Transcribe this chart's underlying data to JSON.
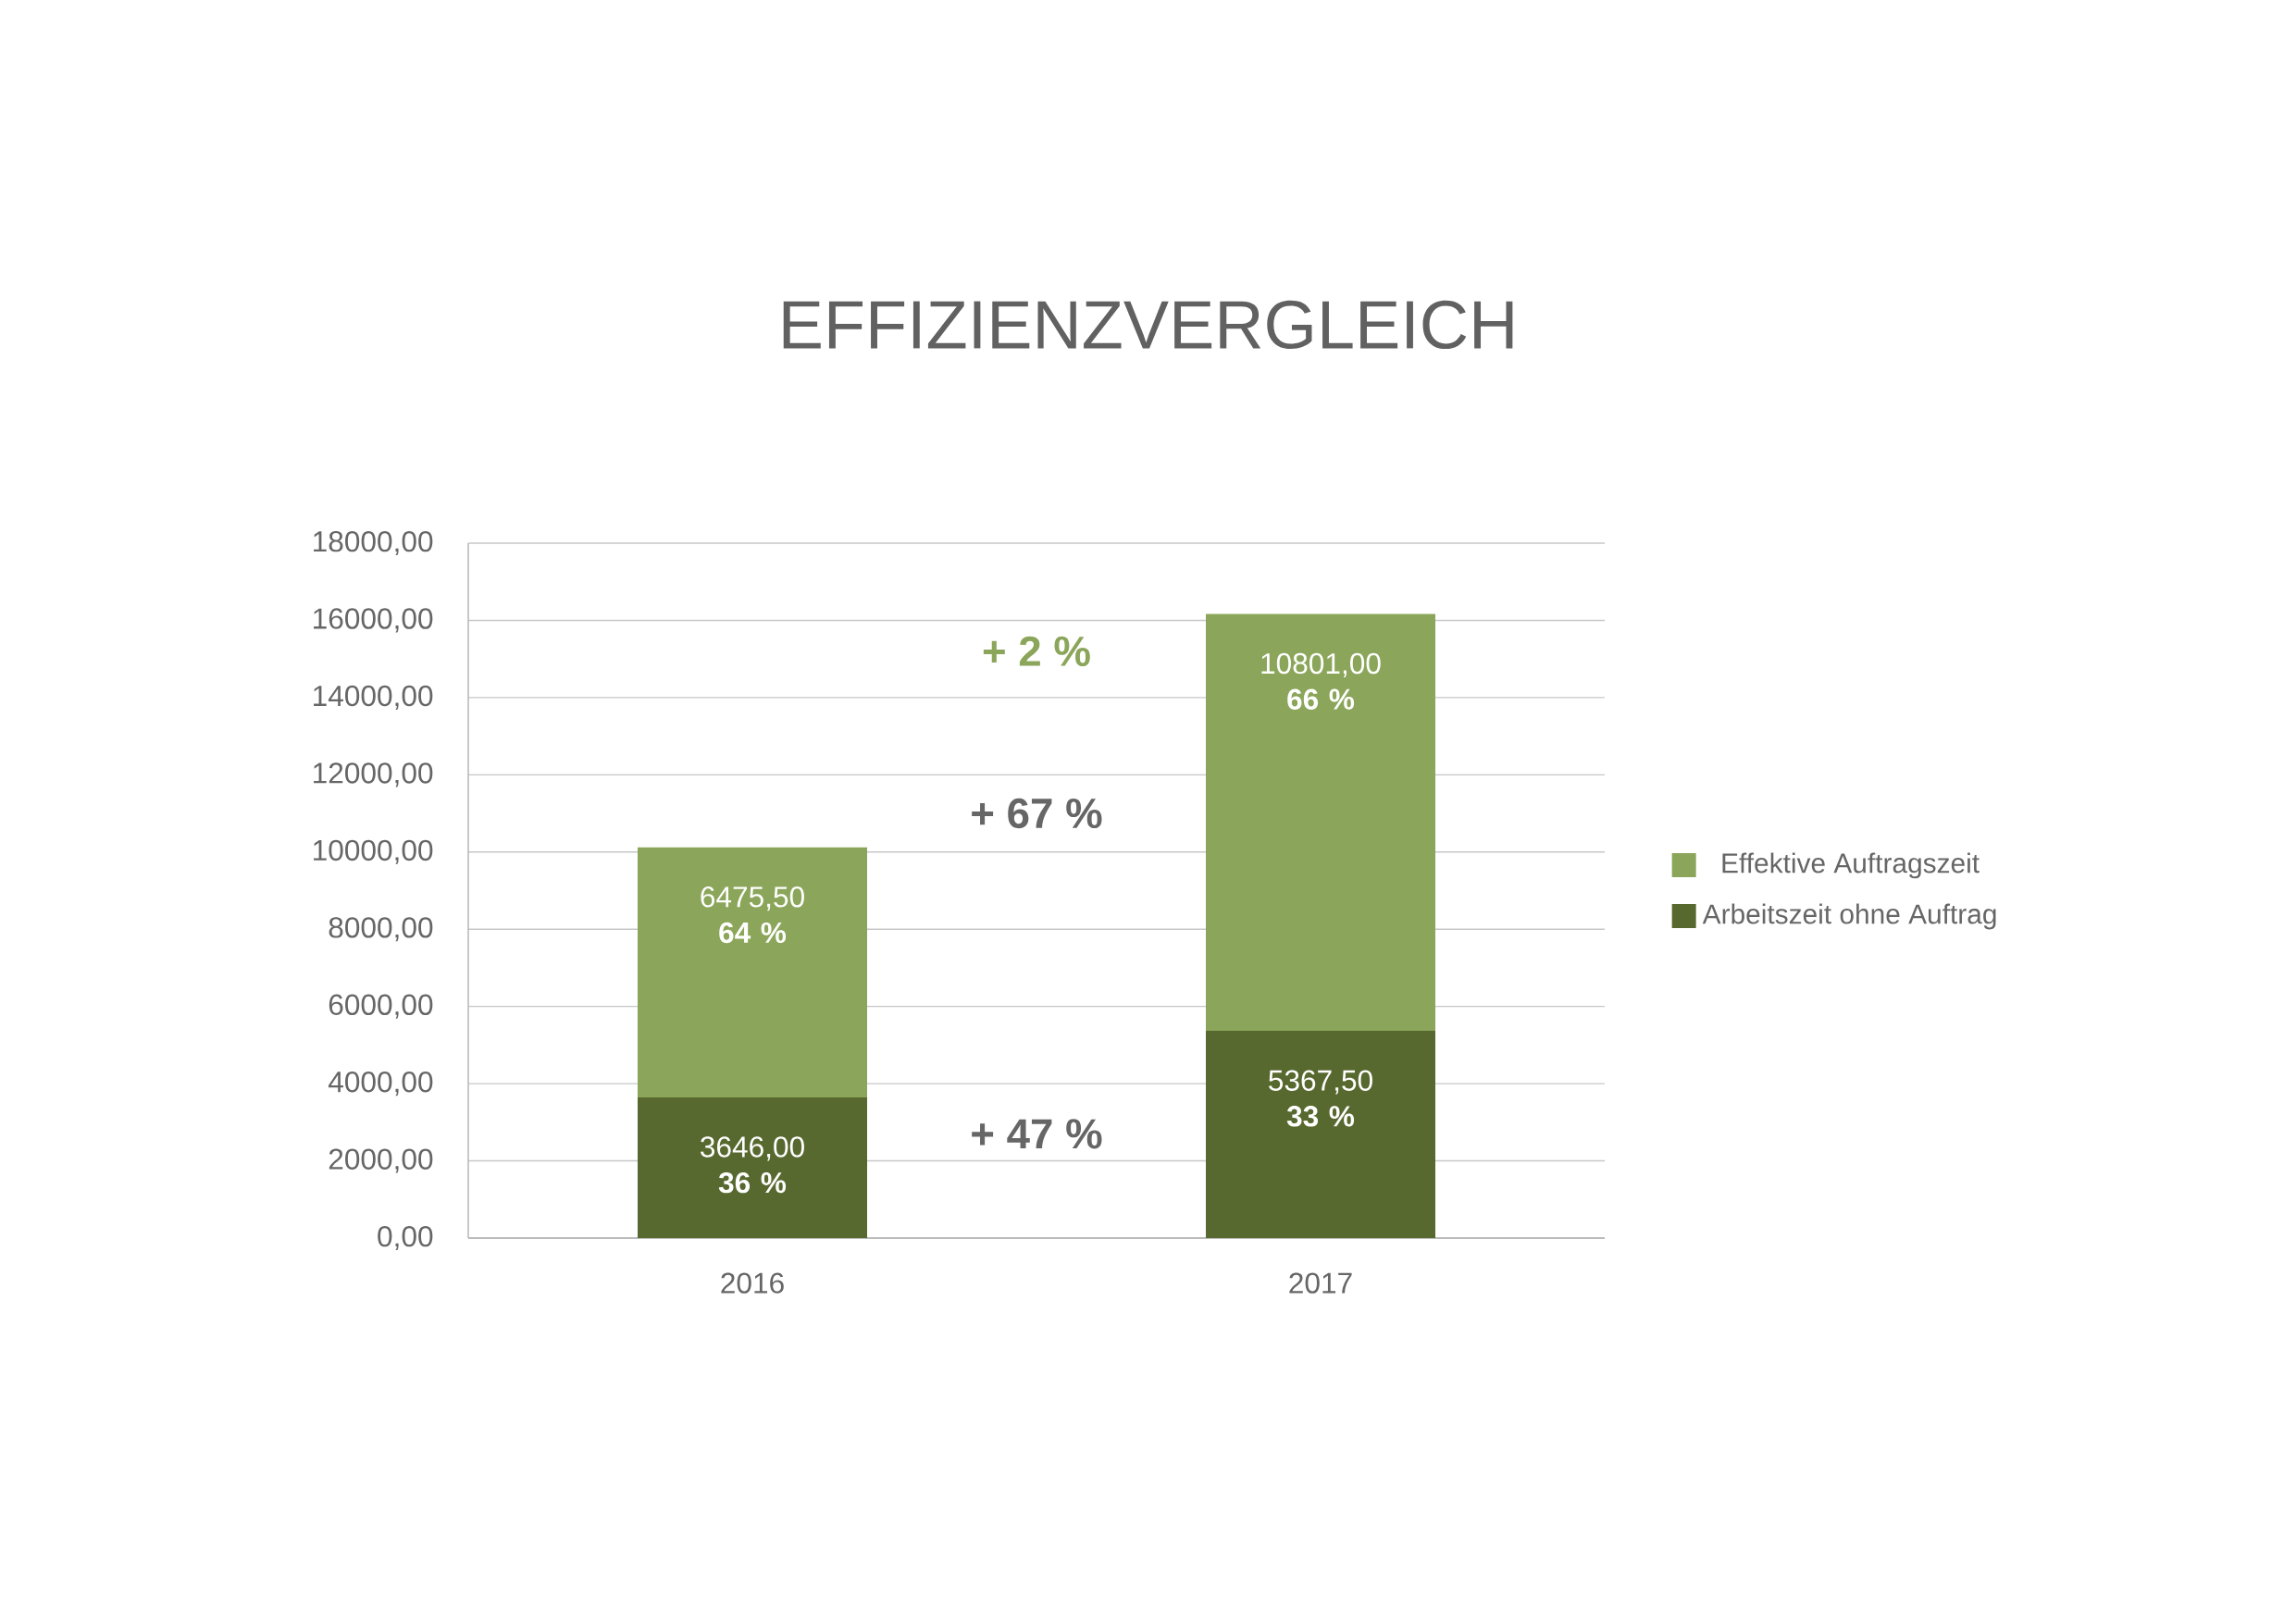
{
  "chart_data": {
    "type": "bar",
    "stacked": true,
    "title": "EFFIZIENZVERGLEICH",
    "categories": [
      "2016",
      "2017"
    ],
    "series": [
      {
        "name": "Arbeitszeit ohne Auftrag",
        "color": "#58692f",
        "values": [
          3646.0,
          5367.5
        ],
        "value_labels": [
          "3646,00 **36 %**",
          "5367,50 **33 %**"
        ]
      },
      {
        "name": "Effektive Auftragszeit",
        "color": "#8ba65a",
        "values": [
          6475.5,
          10801.0
        ],
        "value_labels": [
          "6475,50 **64 %**",
          "10801,00 **66 %**"
        ]
      }
    ],
    "ylim": [
      0,
      18000
    ],
    "yticks": [
      {
        "value": 0,
        "label": "0,00"
      },
      {
        "value": 2000,
        "label": "2000,00"
      },
      {
        "value": 4000,
        "label": "4000,00"
      },
      {
        "value": 6000,
        "label": "6000,00"
      },
      {
        "value": 8000,
        "label": "8000,00"
      },
      {
        "value": 10000,
        "label": "10000,00"
      },
      {
        "value": 12000,
        "label": "12000,00"
      },
      {
        "value": 14000,
        "label": "14000,00"
      },
      {
        "value": 16000,
        "label": "16000,00"
      },
      {
        "value": 18000,
        "label": "18000,00"
      }
    ],
    "annotations": [
      "+ 2 %",
      "+ 67 %",
      "+ 47 %"
    ],
    "grid": "y",
    "legend": "right"
  }
}
